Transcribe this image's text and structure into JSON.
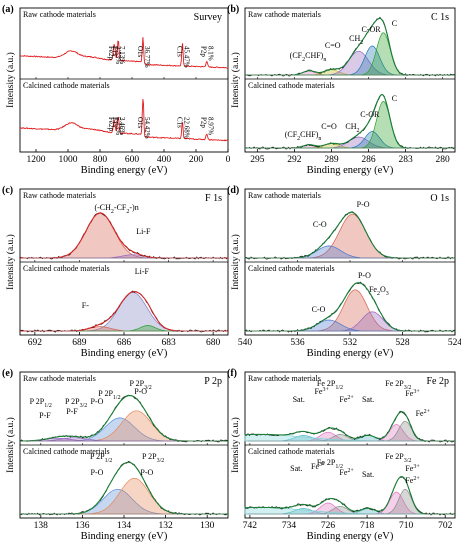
{
  "chart_data": [
    {
      "type": "line",
      "panel_label": "(a)",
      "title": "Survey",
      "xlabel": "Binding energy (eV)",
      "ylabel": "Intensity (a.u.)",
      "xlim": [
        1300,
        0
      ],
      "xticks": [
        1200,
        1000,
        800,
        600,
        400,
        200,
        0
      ],
      "line_color": "#e31a1c",
      "subplots": [
        {
          "name": "Raw cathode materials",
          "peaks": [
            {
              "label": "Fe2p",
              "pct": "3.53%",
              "x": 711
            },
            {
              "label": "F1s",
              "pct": "7.13%",
              "x": 686
            },
            {
              "label": "O1s",
              "pct": "36.77%",
              "x": 531
            },
            {
              "label": "C1s",
              "pct": "45.47%",
              "x": 285
            },
            {
              "label": "P2p",
              "pct": "8.1%",
              "x": 133
            }
          ]
        },
        {
          "name": "Calcined cathode materials",
          "peaks": [
            {
              "label": "Fe2p",
              "pct": "5.13%",
              "x": 711
            },
            {
              "label": "F1s",
              "pct": "3.46%",
              "x": 686
            },
            {
              "label": "O1s",
              "pct": "54.42%",
              "x": 531
            },
            {
              "label": "C1s",
              "pct": "22.68%",
              "x": 285
            },
            {
              "label": "P2p",
              "pct": "8.97%",
              "x": 133
            }
          ]
        }
      ]
    },
    {
      "type": "line",
      "panel_label": "(b)",
      "title": "C 1s",
      "xlabel": "Binding energy (eV)",
      "ylabel": "Intensity (a.u.)",
      "xlim": [
        296,
        279
      ],
      "xticks": [
        295,
        292,
        289,
        286,
        283,
        280
      ],
      "subplots": [
        {
          "name": "Raw cathode materials",
          "labels": [
            "(CF2CHF)n",
            "C=O",
            "CH2",
            "C-OR",
            "C"
          ],
          "peak_positions": [
            290.8,
            289.0,
            286.8,
            285.7,
            284.8
          ]
        },
        {
          "name": "Calcined cathode materials",
          "labels": [
            "(CF2CHF)n",
            "C=O",
            "CH2",
            "C-OR",
            "C"
          ],
          "peak_positions": [
            290.8,
            289.0,
            286.8,
            285.7,
            284.8
          ]
        }
      ]
    },
    {
      "type": "line",
      "panel_label": "(c)",
      "title": "F 1s",
      "xlabel": "Binding energy (eV)",
      "ylabel": "Intensity (a.u.)",
      "xlim": [
        693,
        679
      ],
      "xticks": [
        692,
        689,
        686,
        683,
        680
      ],
      "subplots": [
        {
          "name": "Raw cathode materials",
          "labels": [
            "(-CH2-CF2-)n",
            "Li-F"
          ],
          "peak_positions": [
            687.8,
            685.5
          ]
        },
        {
          "name": "Calcined cathode materials",
          "labels": [
            "Li-F",
            "F-"
          ],
          "peak_positions": [
            685.4,
            687.5
          ]
        }
      ]
    },
    {
      "type": "line",
      "panel_label": "(d)",
      "title": "O 1s",
      "xlabel": "Binding energy (eV)",
      "ylabel": "Intensity (a.u.)",
      "xlim": [
        540,
        524
      ],
      "xticks": [
        540,
        536,
        532,
        528,
        524
      ],
      "subplots": [
        {
          "name": "Raw cathode materials",
          "labels": [
            "P-O",
            "C-O"
          ],
          "peak_positions": [
            531.8,
            533.6
          ]
        },
        {
          "name": "Calcined cathode materials",
          "labels": [
            "P-O",
            "Fe2O3",
            "C-O"
          ],
          "peak_positions": [
            531.6,
            530.3,
            533.6
          ]
        }
      ]
    },
    {
      "type": "line",
      "panel_label": "(e)",
      "title": "P 2p",
      "xlabel": "Binding energy (eV)",
      "ylabel": "Intensity (a.u.)",
      "xlim": [
        139,
        129
      ],
      "xticks": [
        138,
        136,
        134,
        132,
        130
      ],
      "subplots": [
        {
          "name": "Raw cathode materials",
          "labels": [
            "P 2P3/2",
            "P 2P1/2",
            "P-O",
            "P-O",
            "P 2P1/2",
            "P 2P3/2",
            "P-F",
            "P-F"
          ],
          "peak_positions": [
            134.2,
            133.4,
            137.2,
            136.4
          ]
        },
        {
          "name": "Calcined cathode materials",
          "labels": [
            "P 2P1/2",
            "P 2P3/2",
            "P-O",
            "P-O"
          ],
          "peak_positions": [
            134.3,
            133.5
          ]
        }
      ]
    },
    {
      "type": "line",
      "panel_label": "(f)",
      "title": "Fe 2p",
      "xlabel": "Binding energy (eV)",
      "ylabel": "Intensity (a.u.)",
      "xlim": [
        743,
        700
      ],
      "xticks": [
        742,
        734,
        726,
        718,
        710,
        702
      ],
      "subplots": [
        {
          "name": "Raw cathode materials",
          "labels": [
            "Fe 2P1/2",
            "Fe 2P3/2",
            "Sat.",
            "Fe3+",
            "Fe2+",
            "Sat.",
            "Fe3+",
            "Fe2+"
          ],
          "peak_positions": [
            725.5,
            711.5,
            731.0,
            726.0,
            723.5,
            717.8,
            712.0,
            710.2
          ]
        },
        {
          "name": "Calcined cathode materials",
          "labels": [
            "Fe 2P1/2",
            "Fe 2P3/2",
            "Sat.",
            "Fe3+",
            "Fe2+",
            "Sat.",
            "Fe3+",
            "Fe2+"
          ],
          "peak_positions": [
            725.5,
            711.5,
            731.0,
            726.0,
            723.5,
            717.8,
            712.0,
            710.2
          ]
        }
      ]
    }
  ]
}
